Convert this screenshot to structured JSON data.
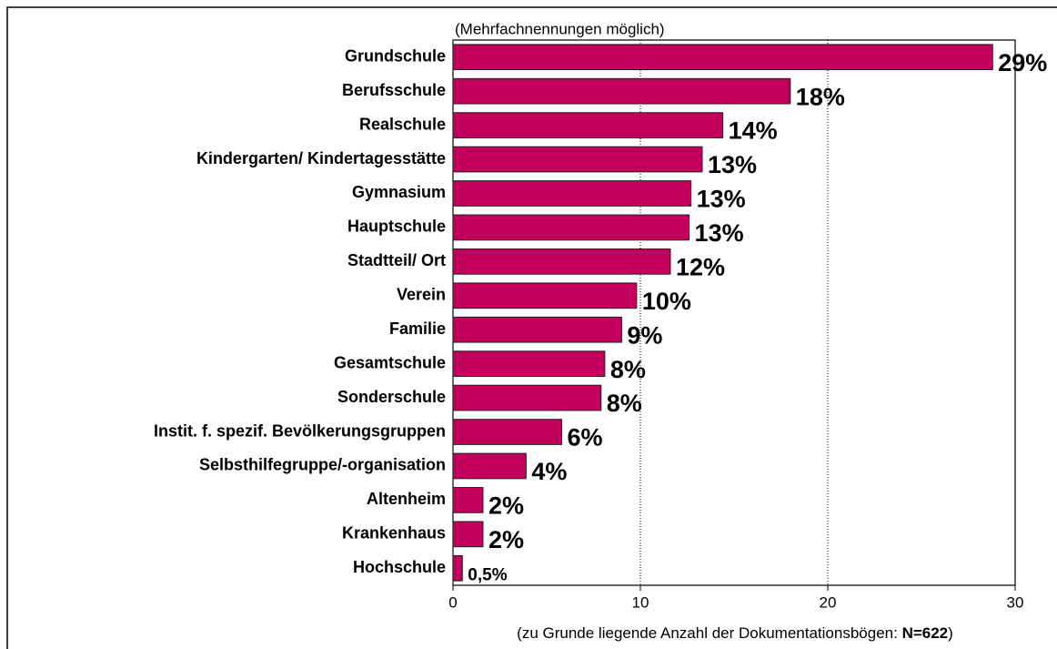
{
  "chart_data": {
    "type": "bar",
    "orientation": "horizontal",
    "subtitle": "(Mehrfachnennungen möglich)",
    "footnote": {
      "prefix": "(zu Grunde liegende Anzahl der Dokumentationsbögen: ",
      "bold": "N=622",
      "suffix": ")"
    },
    "categories": [
      "Grundschule",
      "Berufsschule",
      "Realschule",
      "Kindergarten/ Kindertagesstätte",
      "Gymnasium",
      "Hauptschule",
      "Stadtteil/ Ort",
      "Verein",
      "Familie",
      "Gesamtschule",
      "Sonderschule",
      "Instit. f. spezif. Bevölkerungsgruppen",
      "Selbsthilfegruppe/-organisation",
      "Altenheim",
      "Krankenhaus",
      "Hochschule"
    ],
    "values": [
      28.8,
      18.0,
      14.4,
      13.3,
      12.7,
      12.6,
      11.6,
      9.8,
      9.0,
      8.1,
      7.9,
      5.8,
      3.9,
      1.6,
      1.6,
      0.5
    ],
    "value_labels": [
      "29%",
      "18%",
      "14%",
      "13%",
      "13%",
      "13%",
      "12%",
      "10%",
      "9%",
      "8%",
      "8%",
      "6%",
      "4%",
      "2%",
      "2%",
      "0,5%"
    ],
    "color": "#c2005b",
    "xlim": [
      0,
      30
    ],
    "xticks": [
      0,
      10,
      20,
      30
    ],
    "grid": true
  }
}
